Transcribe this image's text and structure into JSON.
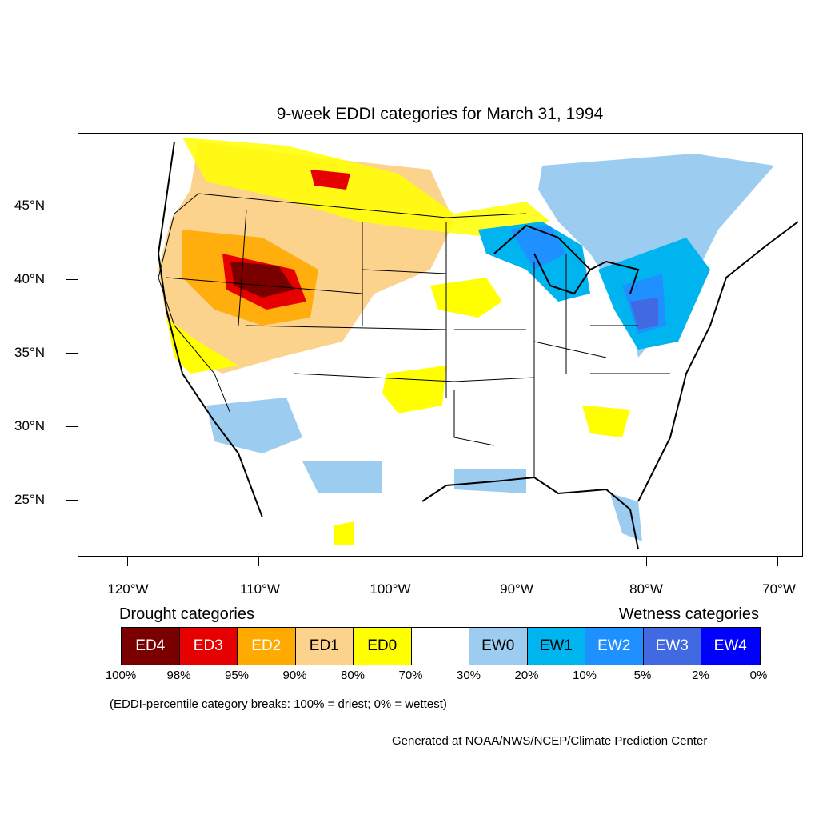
{
  "title": "9-week EDDI categories for March 31, 1994",
  "y_axis": [
    "45°N",
    "40°N",
    "35°N",
    "30°N",
    "25°N"
  ],
  "x_axis": [
    "120°W",
    "110°W",
    "100°W",
    "90°W",
    "80°W",
    "70°W"
  ],
  "legend": {
    "drought_title": "Drought categories",
    "wetness_title": "Wetness categories",
    "categories": [
      {
        "label": "ED4",
        "color": "#7a0000",
        "text_color": "#ffffff"
      },
      {
        "label": "ED3",
        "color": "#e60000",
        "text_color": "#ffffff"
      },
      {
        "label": "ED2",
        "color": "#ffaa00",
        "text_color": "#ffffff"
      },
      {
        "label": "ED1",
        "color": "#fcd38d",
        "text_color": "#000000"
      },
      {
        "label": "ED0",
        "color": "#ffff00",
        "text_color": "#000000"
      },
      {
        "label": "",
        "color": "#ffffff",
        "text_color": "#000000"
      },
      {
        "label": "EW0",
        "color": "#9ccdf0",
        "text_color": "#000000"
      },
      {
        "label": "EW1",
        "color": "#00b4f0",
        "text_color": "#000000"
      },
      {
        "label": "EW2",
        "color": "#1e90ff",
        "text_color": "#ffffff"
      },
      {
        "label": "EW3",
        "color": "#4169e1",
        "text_color": "#ffffff"
      },
      {
        "label": "EW4",
        "color": "#0000ff",
        "text_color": "#ffffff"
      }
    ],
    "breaks": [
      "100%",
      "98%",
      "95%",
      "90%",
      "80%",
      "70%",
      "30%",
      "20%",
      "10%",
      "5%",
      "2%",
      "0%"
    ]
  },
  "note": "(EDDI-percentile category breaks: 100% = driest; 0% = wettest)",
  "credit": "Generated at NOAA/NWS/NCEP/Climate Prediction Center"
}
